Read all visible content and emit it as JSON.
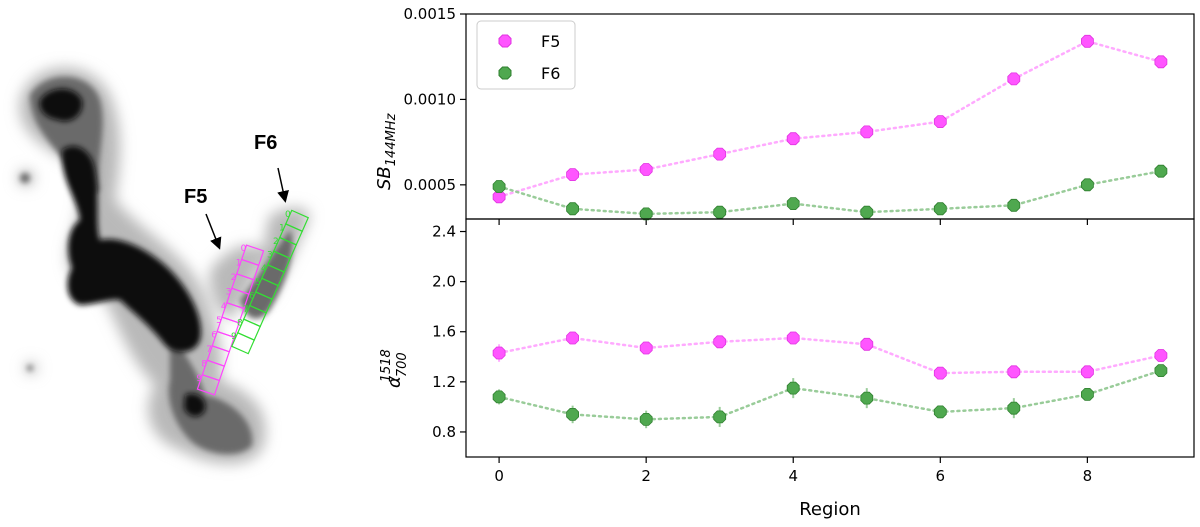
{
  "image_panel": {
    "labels": [
      "F5",
      "F6"
    ],
    "f5_color": "#ff44ff",
    "f6_color": "#33dd33",
    "f5_regions": [
      "0",
      "1",
      "2",
      "3",
      "4",
      "5",
      "6",
      "7",
      "8",
      "9"
    ],
    "f6_regions": [
      "0",
      "1",
      "2",
      "3",
      "4",
      "5",
      "6",
      "7",
      "8",
      "9"
    ]
  },
  "chart_data": [
    {
      "type": "line",
      "ylabel": "SB",
      "ylabel_sub": "144MHz",
      "ylim": [
        0.0003,
        0.0015
      ],
      "yticks": [
        "0.0005",
        "0.0010",
        "0.0015"
      ],
      "ytick_values": [
        0.0005,
        0.001,
        0.0015
      ],
      "xlim": [
        -0.45,
        9.45
      ],
      "legend": {
        "position": "top-left",
        "entries": [
          "F5",
          "F6"
        ]
      },
      "x": [
        0,
        1,
        2,
        3,
        4,
        5,
        6,
        7,
        8,
        9
      ],
      "series": [
        {
          "name": "F5",
          "color": "#ff44ff",
          "values": [
            0.00043,
            0.00056,
            0.00059,
            0.00068,
            0.00077,
            0.00081,
            0.00087,
            0.00112,
            0.00134,
            0.00122
          ]
        },
        {
          "name": "F6",
          "color": "#3a9a3a",
          "values": [
            0.00049,
            0.00036,
            0.00033,
            0.00034,
            0.00039,
            0.00034,
            0.00036,
            0.00038,
            0.0005,
            0.00058
          ]
        }
      ]
    },
    {
      "type": "line",
      "ylabel": "α",
      "ylabel_sup": "1518",
      "ylabel_sub": "700",
      "ylim": [
        0.6,
        2.5
      ],
      "yticks": [
        "0.8",
        "1.2",
        "1.6",
        "2.0",
        "2.4"
      ],
      "ytick_values": [
        0.8,
        1.2,
        1.6,
        2.0,
        2.4
      ],
      "xlabel": "Region",
      "xticks": [
        "0",
        "2",
        "4",
        "6",
        "8"
      ],
      "xtick_values": [
        0,
        2,
        4,
        6,
        8
      ],
      "xlim": [
        -0.45,
        9.45
      ],
      "x": [
        0,
        1,
        2,
        3,
        4,
        5,
        6,
        7,
        8,
        9
      ],
      "series": [
        {
          "name": "F5",
          "color": "#ff44ff",
          "values": [
            1.43,
            1.55,
            1.47,
            1.52,
            1.55,
            1.5,
            1.27,
            1.28,
            1.28,
            1.41
          ],
          "errors": [
            0.07,
            0.05,
            0.05,
            0.05,
            0.05,
            0.05,
            0.04,
            0.04,
            0.04,
            0.05
          ]
        },
        {
          "name": "F6",
          "color": "#3a9a3a",
          "values": [
            1.08,
            0.94,
            0.9,
            0.92,
            1.15,
            1.07,
            0.96,
            0.99,
            1.1,
            1.29
          ],
          "errors": [
            0.06,
            0.07,
            0.07,
            0.08,
            0.08,
            0.08,
            0.05,
            0.08,
            0.05,
            0.04
          ]
        }
      ]
    }
  ]
}
